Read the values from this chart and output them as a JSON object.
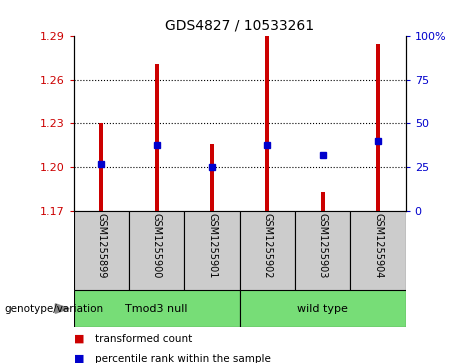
{
  "title": "GDS4827 / 10533261",
  "samples": [
    "GSM1255899",
    "GSM1255900",
    "GSM1255901",
    "GSM1255902",
    "GSM1255903",
    "GSM1255904"
  ],
  "bar_tops": [
    1.23,
    1.271,
    1.216,
    1.29,
    1.183,
    1.285
  ],
  "bar_base": 1.17,
  "blue_y": [
    1.202,
    1.215,
    1.2,
    1.215,
    1.208,
    1.218
  ],
  "ylim": [
    1.17,
    1.29
  ],
  "yticks_left": [
    1.17,
    1.2,
    1.23,
    1.26,
    1.29
  ],
  "yticks_right_labels": [
    "0",
    "25",
    "50",
    "75",
    "100%"
  ],
  "yticks_right_vals": [
    1.17,
    1.2,
    1.23,
    1.26,
    1.29
  ],
  "bar_color": "#cc0000",
  "blue_color": "#0000cc",
  "tick_label_bg": "#cccccc",
  "group_label_color": "#77dd77",
  "group1_label": "Tmod3 null",
  "group2_label": "wild type",
  "legend_items": [
    "transformed count",
    "percentile rank within the sample"
  ],
  "genotype_label": "genotype/variation"
}
